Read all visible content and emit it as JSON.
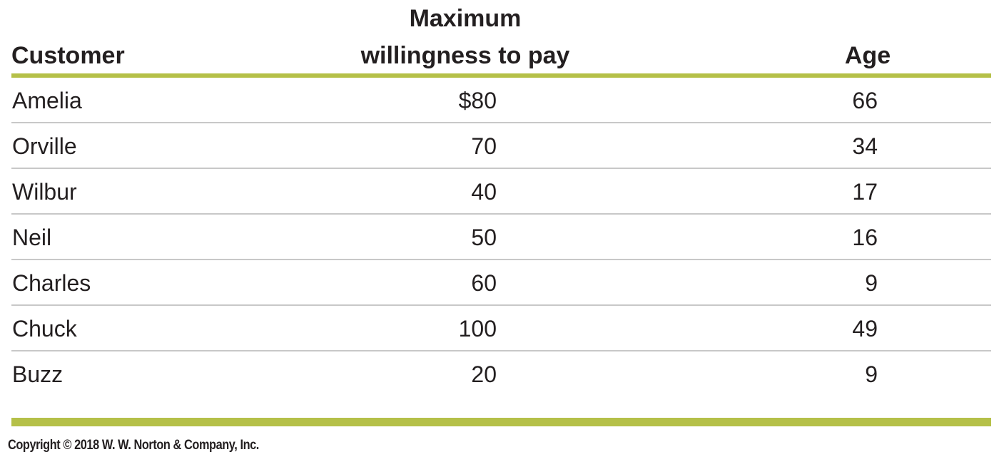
{
  "table": {
    "headers": {
      "customer": "Customer",
      "wtp_line1": "Maximum",
      "wtp_line2": "willingness to pay",
      "age": "Age"
    },
    "rows": [
      {
        "customer": "Amelia",
        "wtp": "$80",
        "age": "66"
      },
      {
        "customer": "Orville",
        "wtp": "70",
        "age": "34"
      },
      {
        "customer": "Wilbur",
        "wtp": "40",
        "age": "17"
      },
      {
        "customer": "Neil",
        "wtp": "50",
        "age": "16"
      },
      {
        "customer": "Charles",
        "wtp": "60",
        "age": "9"
      },
      {
        "customer": "Chuck",
        "wtp": "100",
        "age": "49"
      },
      {
        "customer": "Buzz",
        "wtp": "20",
        "age": "9"
      }
    ]
  },
  "footer": {
    "copyright": "Copyright © 2018 W. W. Norton & Company, Inc."
  },
  "colors": {
    "accent_rule": "#b5c048",
    "row_divider": "#c8c8c8",
    "text": "#231f20"
  }
}
